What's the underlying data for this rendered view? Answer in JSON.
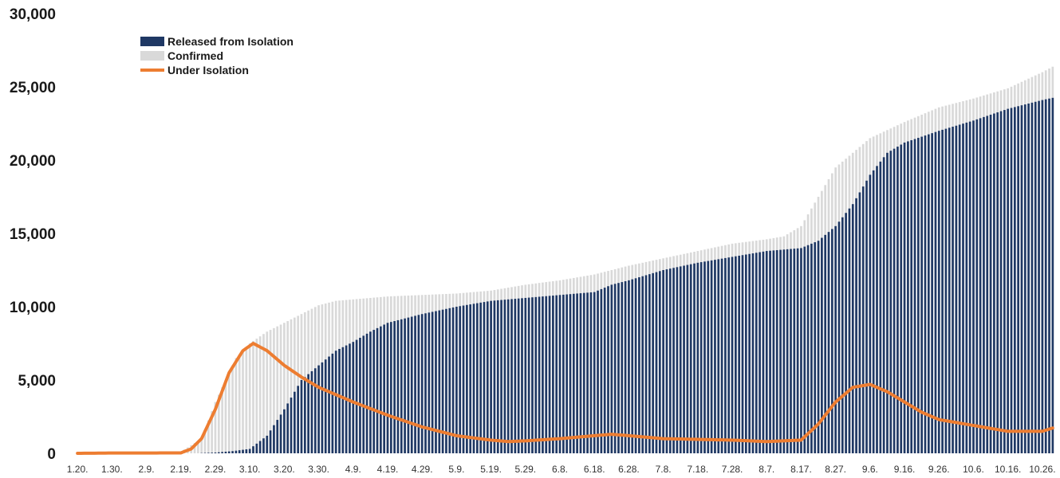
{
  "chart_data": {
    "type": "bar",
    "ylim": [
      0,
      30000
    ],
    "yticks": [
      0,
      5000,
      10000,
      15000,
      20000,
      25000,
      30000
    ],
    "ytick_labels": [
      "0",
      "5,000",
      "10,000",
      "15,000",
      "20,000",
      "25,000",
      "30,000"
    ],
    "x_tick_labels": [
      "1.20.",
      "1.30.",
      "2.9.",
      "2.19.",
      "2.29.",
      "3.10.",
      "3.20.",
      "3.30.",
      "4.9.",
      "4.19.",
      "4.29.",
      "5.9.",
      "5.19.",
      "5.29.",
      "6.8.",
      "6.18.",
      "6.28.",
      "7.8.",
      "7.18.",
      "7.28.",
      "8.7.",
      "8.17.",
      "8.27.",
      "9.6.",
      "9.16.",
      "9.26.",
      "10.6.",
      "10.16.",
      "10.26."
    ],
    "x_tick_day_index": [
      0,
      10,
      20,
      30,
      40,
      50,
      60,
      70,
      80,
      90,
      100,
      110,
      120,
      130,
      140,
      150,
      160,
      170,
      180,
      190,
      200,
      210,
      220,
      230,
      240,
      250,
      260,
      270,
      280
    ],
    "day_count": 284,
    "grid": false,
    "legend": {
      "placement": "top-left",
      "items": [
        {
          "label": "Released from Isolation",
          "kind": "bar",
          "color": "#1f3864"
        },
        {
          "label": "Confirmed",
          "kind": "bar",
          "color": "#d9d9d9"
        },
        {
          "label": "Under Isolation",
          "kind": "line",
          "color": "#ed7d31"
        }
      ]
    },
    "series": [
      {
        "name": "Confirmed",
        "kind": "bar",
        "color": "#d9d9d9",
        "anchors": [
          [
            0,
            1
          ],
          [
            10,
            4
          ],
          [
            20,
            27
          ],
          [
            30,
            104
          ],
          [
            36,
            1000
          ],
          [
            40,
            3500
          ],
          [
            46,
            6500
          ],
          [
            50,
            7500
          ],
          [
            55,
            8300
          ],
          [
            60,
            8900
          ],
          [
            65,
            9500
          ],
          [
            70,
            10100
          ],
          [
            75,
            10400
          ],
          [
            80,
            10500
          ],
          [
            90,
            10700
          ],
          [
            100,
            10800
          ],
          [
            110,
            10900
          ],
          [
            120,
            11100
          ],
          [
            130,
            11500
          ],
          [
            140,
            11800
          ],
          [
            150,
            12200
          ],
          [
            155,
            12500
          ],
          [
            160,
            12800
          ],
          [
            170,
            13300
          ],
          [
            180,
            13800
          ],
          [
            190,
            14300
          ],
          [
            200,
            14600
          ],
          [
            205,
            14800
          ],
          [
            210,
            15500
          ],
          [
            215,
            17500
          ],
          [
            220,
            19500
          ],
          [
            225,
            20500
          ],
          [
            230,
            21500
          ],
          [
            240,
            22600
          ],
          [
            250,
            23600
          ],
          [
            260,
            24200
          ],
          [
            270,
            24900
          ],
          [
            280,
            26000
          ],
          [
            284,
            26500
          ]
        ]
      },
      {
        "name": "Released from Isolation",
        "kind": "bar",
        "color": "#1f3864",
        "anchors": [
          [
            0,
            0
          ],
          [
            34,
            0
          ],
          [
            40,
            50
          ],
          [
            45,
            150
          ],
          [
            50,
            300
          ],
          [
            55,
            1200
          ],
          [
            60,
            3000
          ],
          [
            65,
            5000
          ],
          [
            70,
            6000
          ],
          [
            75,
            7000
          ],
          [
            80,
            7600
          ],
          [
            85,
            8300
          ],
          [
            90,
            8900
          ],
          [
            100,
            9500
          ],
          [
            110,
            10000
          ],
          [
            120,
            10400
          ],
          [
            130,
            10600
          ],
          [
            140,
            10800
          ],
          [
            150,
            11000
          ],
          [
            155,
            11500
          ],
          [
            160,
            11800
          ],
          [
            170,
            12500
          ],
          [
            180,
            13000
          ],
          [
            190,
            13400
          ],
          [
            200,
            13800
          ],
          [
            210,
            14000
          ],
          [
            215,
            14500
          ],
          [
            220,
            15500
          ],
          [
            225,
            17000
          ],
          [
            230,
            19000
          ],
          [
            235,
            20500
          ],
          [
            240,
            21200
          ],
          [
            250,
            22000
          ],
          [
            260,
            22700
          ],
          [
            270,
            23500
          ],
          [
            280,
            24100
          ],
          [
            284,
            24300
          ]
        ]
      },
      {
        "name": "Under Isolation",
        "kind": "line",
        "color": "#ed7d31",
        "anchors": [
          [
            0,
            0
          ],
          [
            10,
            20
          ],
          [
            20,
            20
          ],
          [
            30,
            30
          ],
          [
            33,
            300
          ],
          [
            36,
            1000
          ],
          [
            40,
            3000
          ],
          [
            44,
            5500
          ],
          [
            48,
            7000
          ],
          [
            51,
            7500
          ],
          [
            55,
            7000
          ],
          [
            60,
            6000
          ],
          [
            65,
            5200
          ],
          [
            70,
            4500
          ],
          [
            75,
            4000
          ],
          [
            80,
            3500
          ],
          [
            90,
            2600
          ],
          [
            100,
            1800
          ],
          [
            110,
            1200
          ],
          [
            120,
            900
          ],
          [
            125,
            800
          ],
          [
            130,
            850
          ],
          [
            140,
            1000
          ],
          [
            150,
            1200
          ],
          [
            155,
            1300
          ],
          [
            160,
            1200
          ],
          [
            170,
            1000
          ],
          [
            180,
            950
          ],
          [
            190,
            900
          ],
          [
            200,
            800
          ],
          [
            210,
            900
          ],
          [
            215,
            2000
          ],
          [
            220,
            3500
          ],
          [
            225,
            4500
          ],
          [
            230,
            4700
          ],
          [
            235,
            4200
          ],
          [
            240,
            3500
          ],
          [
            245,
            2800
          ],
          [
            250,
            2300
          ],
          [
            260,
            1900
          ],
          [
            270,
            1500
          ],
          [
            280,
            1500
          ],
          [
            284,
            1800
          ]
        ]
      }
    ]
  }
}
